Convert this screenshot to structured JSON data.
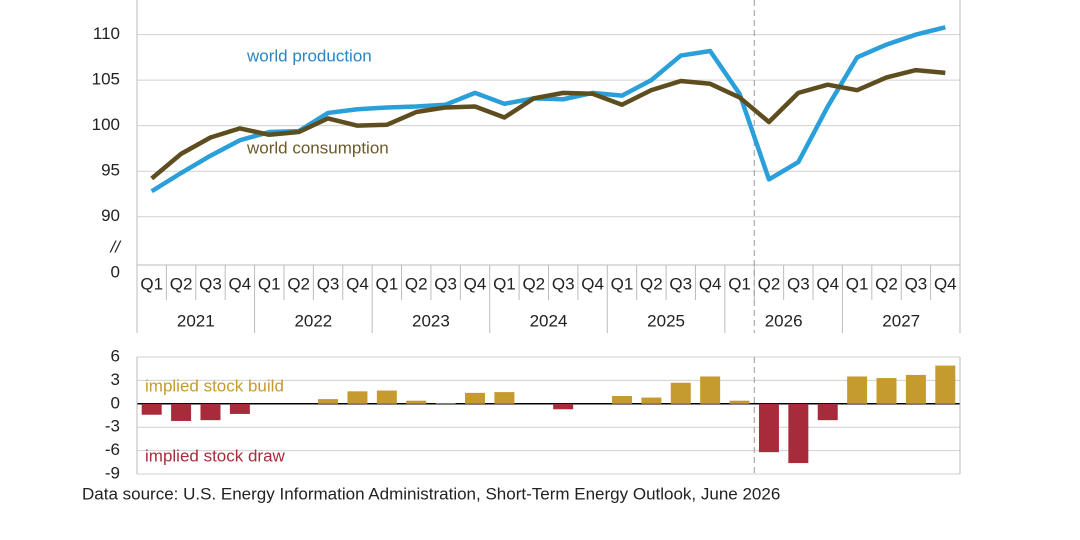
{
  "chart_data": [
    {
      "type": "line",
      "categories": [
        "Q1",
        "Q2",
        "Q3",
        "Q4",
        "Q1",
        "Q2",
        "Q3",
        "Q4",
        "Q1",
        "Q2",
        "Q3",
        "Q4",
        "Q1",
        "Q2",
        "Q3",
        "Q4",
        "Q1",
        "Q2",
        "Q3",
        "Q4",
        "Q1",
        "Q2",
        "Q3",
        "Q4",
        "Q1",
        "Q2",
        "Q3",
        "Q4"
      ],
      "years": [
        "2021",
        "2022",
        "2023",
        "2024",
        "2025",
        "2026",
        "2027"
      ],
      "series": [
        {
          "name": "world production",
          "color": "#2b9fd9",
          "label_color": "#2a85c2",
          "values": [
            92.8,
            94.8,
            96.7,
            98.4,
            99.3,
            99.4,
            101.4,
            101.8,
            102.0,
            102.1,
            102.3,
            103.6,
            102.4,
            103.0,
            102.9,
            103.6,
            103.3,
            105.0,
            107.7,
            108.2,
            103.5,
            94.1,
            96.0,
            102.1,
            107.5,
            108.9,
            110.0,
            110.8
          ]
        },
        {
          "name": "world consumption",
          "color": "#5e4e1f",
          "label_color": "#6b5a2a",
          "values": [
            94.2,
            96.9,
            98.7,
            99.7,
            99.0,
            99.3,
            100.8,
            100.0,
            100.1,
            101.5,
            102.0,
            102.1,
            100.9,
            103.0,
            103.6,
            103.5,
            102.3,
            103.9,
            104.9,
            104.6,
            103.1,
            100.4,
            103.6,
            104.5,
            103.9,
            105.3,
            106.1,
            105.8
          ]
        }
      ],
      "ylim": [
        84.7,
        113.8
      ],
      "yticks": [
        90,
        95,
        100,
        105,
        110
      ],
      "grid": true,
      "axis_break": {
        "mark": "//",
        "base_label": "0"
      },
      "divider_after_index": 20
    },
    {
      "type": "bar",
      "labels": {
        "positive": "implied stock  build",
        "negative": "implied stock draw"
      },
      "positive_color": "#c59a2e",
      "negative_color": "#a82b3b",
      "values": [
        -1.4,
        -2.2,
        -2.1,
        -1.3,
        0,
        0,
        0.6,
        1.6,
        1.7,
        0.4,
        0.1,
        1.4,
        1.5,
        0,
        -0.7,
        0,
        1.0,
        0.8,
        2.7,
        3.5,
        0.4,
        -6.2,
        -7.6,
        -2.1,
        3.5,
        3.3,
        3.7,
        4.9
      ],
      "ylim": [
        -9,
        6
      ],
      "yticks": [
        -9,
        -6,
        -3,
        0,
        3,
        6
      ],
      "grid": true,
      "divider_after_index": 20
    }
  ],
  "source": "Data source: U.S. Energy Information Administration, Short-Term Energy Outlook, June 2026"
}
